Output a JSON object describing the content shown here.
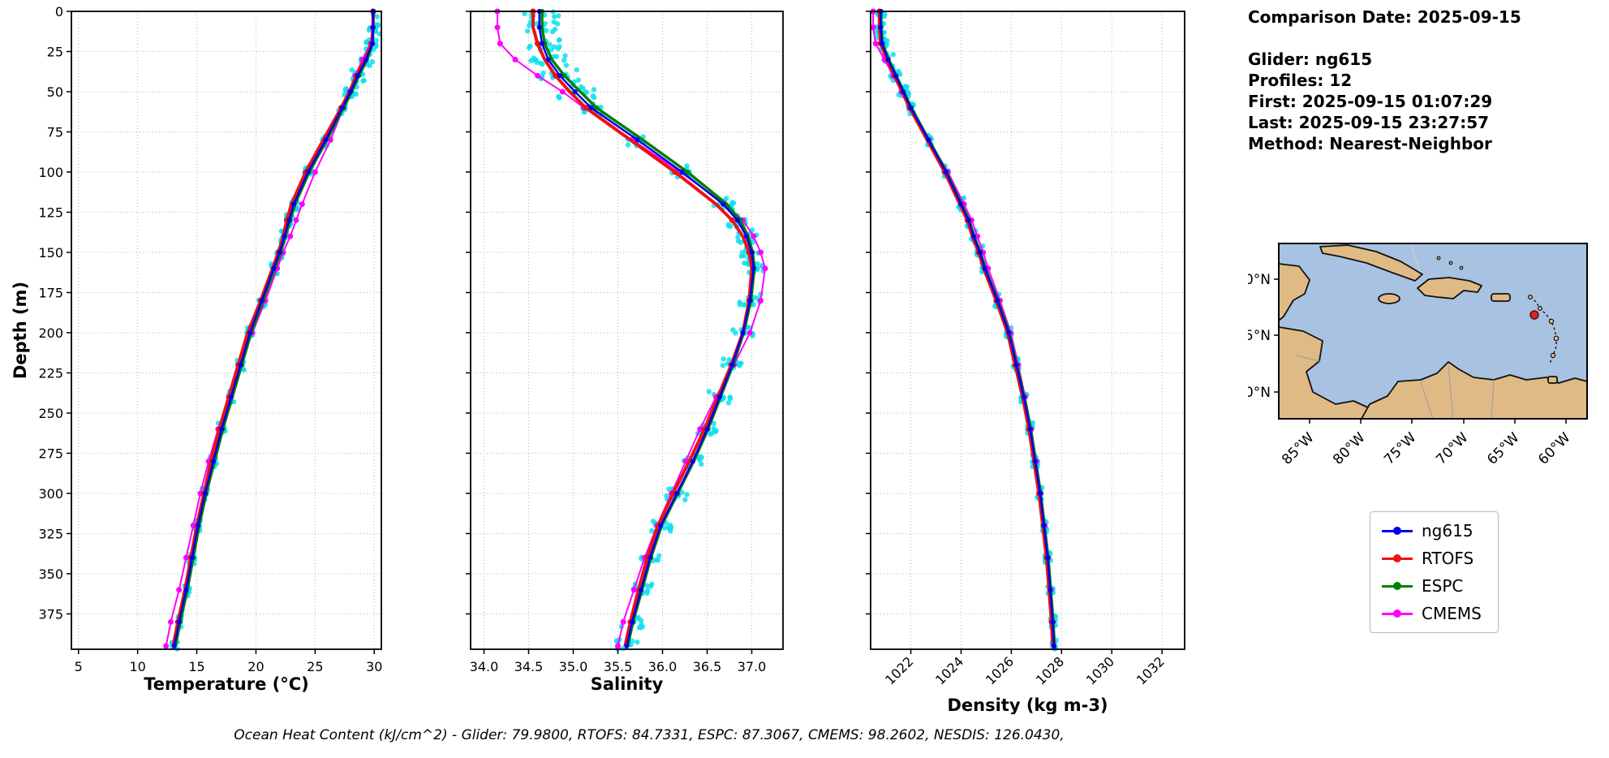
{
  "info": {
    "comparison_date": "Comparison Date: 2025-09-15",
    "glider": "Glider: ng615",
    "profiles": "Profiles: 12",
    "first": "First: 2025-09-15 01:07:29",
    "last": "Last: 2025-09-15 23:27:57",
    "method": "Method: Nearest-Neighbor"
  },
  "footer": {
    "text": "Ocean Heat Content (kJ/cm^2) - Glider: 79.9800,  RTOFS: 84.7331,  ESPC: 87.3067,  CMEMS: 98.2602,  NESDIS: 126.0430,"
  },
  "legend": {
    "entries": [
      {
        "label": "ng615",
        "color": "#0000ee"
      },
      {
        "label": "RTOFS",
        "color": "#ee1111"
      },
      {
        "label": "ESPC",
        "color": "#008000"
      },
      {
        "label": "CMEMS",
        "color": "#ff00ff"
      }
    ]
  },
  "map": {
    "lat_ticks": [
      "20°N",
      "15°N",
      "10°N"
    ],
    "lon_ticks": [
      "85°W",
      "80°W",
      "75°W",
      "70°W",
      "65°W",
      "60°W"
    ],
    "water_color": "#a8c2e2",
    "land_color": "#e0ba85",
    "marker_color": "#dd2222",
    "marker_note": "glider position"
  },
  "chart_data": [
    {
      "type": "line",
      "xlabel": "Temperature (°C)",
      "ylabel": "Depth (m)",
      "xlim": [
        4.4,
        30.6
      ],
      "xticks": [
        5,
        10,
        15,
        20,
        25,
        30
      ],
      "ylim": [
        0,
        397
      ],
      "yticks": [
        0,
        25,
        50,
        75,
        100,
        125,
        150,
        175,
        200,
        225,
        250,
        275,
        300,
        325,
        350,
        375
      ],
      "depths": [
        0,
        10,
        20,
        30,
        40,
        50,
        60,
        80,
        100,
        120,
        130,
        140,
        150,
        160,
        180,
        200,
        220,
        240,
        260,
        280,
        300,
        320,
        340,
        360,
        380,
        395
      ],
      "scatter": {
        "label": "glider raw profiles",
        "color": "#0ce0ee",
        "jitter": 0.3
      },
      "series": [
        {
          "name": "ng615",
          "color": "#0000ee",
          "values": [
            29.9,
            29.9,
            29.85,
            29.3,
            28.6,
            28.0,
            27.3,
            25.9,
            24.4,
            23.2,
            22.8,
            22.4,
            22.0,
            21.5,
            20.5,
            19.5,
            18.7,
            17.9,
            17.1,
            16.4,
            15.7,
            15.1,
            14.6,
            14.1,
            13.5,
            13.1
          ]
        },
        {
          "name": "RTOFS",
          "color": "#ee1111",
          "values": [
            29.9,
            29.9,
            29.8,
            29.2,
            28.5,
            27.9,
            27.2,
            25.7,
            24.2,
            23.0,
            22.6,
            22.3,
            21.9,
            21.4,
            20.4,
            19.3,
            18.5,
            17.7,
            16.9,
            16.2,
            15.6,
            15.0,
            14.5,
            14.0,
            13.4,
            13.0
          ]
        },
        {
          "name": "ESPC",
          "color": "#008000",
          "values": [
            29.95,
            29.9,
            29.85,
            29.4,
            28.7,
            28.1,
            27.4,
            26.0,
            24.5,
            23.3,
            22.9,
            22.5,
            22.1,
            21.6,
            20.6,
            19.6,
            18.8,
            18.0,
            17.2,
            16.5,
            15.8,
            15.2,
            14.7,
            14.2,
            13.6,
            13.2
          ]
        },
        {
          "name": "CMEMS",
          "color": "#ff00ff",
          "values": [
            29.9,
            29.85,
            29.7,
            29.0,
            28.4,
            27.9,
            27.4,
            26.3,
            25.0,
            23.9,
            23.4,
            22.9,
            22.3,
            21.8,
            20.8,
            19.7,
            18.6,
            17.7,
            16.8,
            16.0,
            15.3,
            14.7,
            14.1,
            13.5,
            12.8,
            12.4
          ]
        }
      ]
    },
    {
      "type": "line",
      "xlabel": "Salinity",
      "xlim": [
        33.85,
        37.35
      ],
      "xticks": [
        34.0,
        34.5,
        35.0,
        35.5,
        36.0,
        36.5,
        37.0
      ],
      "xtick_labels": [
        "34.0",
        "34.5",
        "35.0",
        "35.5",
        "36.0",
        "36.5",
        "37.0"
      ],
      "ylim": [
        0,
        397
      ],
      "yticks": [
        0,
        25,
        50,
        75,
        100,
        125,
        150,
        175,
        200,
        225,
        250,
        275,
        300,
        325,
        350,
        375
      ],
      "depths": [
        0,
        10,
        20,
        30,
        40,
        50,
        60,
        80,
        100,
        120,
        130,
        140,
        150,
        160,
        180,
        200,
        220,
        240,
        260,
        280,
        300,
        320,
        340,
        360,
        380,
        395
      ],
      "scatter": {
        "label": "glider raw profiles",
        "color": "#0ce0ee",
        "jitter": 0.12
      },
      "series": [
        {
          "name": "ng615",
          "color": "#0000ee",
          "values": [
            34.62,
            34.62,
            34.65,
            34.72,
            34.85,
            35.02,
            35.2,
            35.72,
            36.22,
            36.68,
            36.84,
            36.94,
            37.0,
            37.02,
            36.98,
            36.9,
            36.78,
            36.64,
            36.5,
            36.34,
            36.16,
            35.98,
            35.86,
            35.76,
            35.66,
            35.6
          ]
        },
        {
          "name": "RTOFS",
          "color": "#ee1111",
          "values": [
            34.55,
            34.55,
            34.6,
            34.68,
            34.8,
            34.96,
            35.14,
            35.64,
            36.14,
            36.6,
            36.78,
            36.9,
            36.97,
            37.0,
            36.97,
            36.9,
            36.77,
            36.62,
            36.47,
            36.3,
            36.12,
            35.95,
            35.83,
            35.73,
            35.64,
            35.58
          ]
        },
        {
          "name": "ESPC",
          "color": "#008000",
          "values": [
            34.65,
            34.65,
            34.68,
            34.76,
            34.9,
            35.08,
            35.26,
            35.78,
            36.28,
            36.72,
            36.87,
            36.96,
            37.01,
            37.03,
            36.99,
            36.91,
            36.79,
            36.65,
            36.51,
            36.35,
            36.17,
            35.99,
            35.87,
            35.77,
            35.67,
            35.61
          ]
        },
        {
          "name": "CMEMS",
          "color": "#ff00ff",
          "values": [
            34.15,
            34.15,
            34.18,
            34.35,
            34.6,
            34.88,
            35.12,
            35.66,
            36.2,
            36.7,
            36.9,
            37.02,
            37.1,
            37.15,
            37.1,
            36.98,
            36.8,
            36.6,
            36.42,
            36.26,
            36.1,
            35.94,
            35.8,
            35.68,
            35.56,
            35.5
          ]
        }
      ]
    },
    {
      "type": "line",
      "xlabel": "Density (kg m-3)",
      "xlim": [
        1020.4,
        1032.9
      ],
      "xticks": [
        1022,
        1024,
        1026,
        1028,
        1030,
        1032
      ],
      "ylim": [
        0,
        397
      ],
      "yticks": [
        0,
        25,
        50,
        75,
        100,
        125,
        150,
        175,
        200,
        225,
        250,
        275,
        300,
        325,
        350,
        375
      ],
      "depths": [
        0,
        10,
        20,
        30,
        40,
        50,
        60,
        80,
        100,
        120,
        130,
        140,
        150,
        160,
        180,
        200,
        220,
        240,
        260,
        280,
        300,
        320,
        340,
        360,
        380,
        395
      ],
      "scatter": {
        "label": "glider raw profiles",
        "color": "#0ce0ee",
        "jitter": 0.12
      },
      "series": [
        {
          "name": "ng615",
          "color": "#0000ee",
          "values": [
            1020.8,
            1020.8,
            1020.85,
            1021.1,
            1021.4,
            1021.7,
            1022.0,
            1022.7,
            1023.4,
            1024.0,
            1024.3,
            1024.5,
            1024.75,
            1024.95,
            1025.45,
            1025.9,
            1026.2,
            1026.5,
            1026.75,
            1026.95,
            1027.15,
            1027.3,
            1027.45,
            1027.55,
            1027.65,
            1027.7
          ]
        },
        {
          "name": "RTOFS",
          "color": "#ee1111",
          "values": [
            1020.75,
            1020.75,
            1020.8,
            1021.05,
            1021.35,
            1021.65,
            1021.95,
            1022.65,
            1023.35,
            1023.95,
            1024.25,
            1024.45,
            1024.7,
            1024.9,
            1025.4,
            1025.85,
            1026.15,
            1026.45,
            1026.7,
            1026.9,
            1027.1,
            1027.25,
            1027.4,
            1027.5,
            1027.6,
            1027.65
          ]
        },
        {
          "name": "ESPC",
          "color": "#008000",
          "values": [
            1020.82,
            1020.82,
            1020.87,
            1021.12,
            1021.42,
            1021.72,
            1022.02,
            1022.72,
            1023.42,
            1024.02,
            1024.32,
            1024.52,
            1024.77,
            1024.97,
            1025.47,
            1025.92,
            1026.22,
            1026.52,
            1026.77,
            1026.97,
            1027.17,
            1027.32,
            1027.47,
            1027.57,
            1027.67,
            1027.72
          ]
        },
        {
          "name": "CMEMS",
          "color": "#ff00ff",
          "values": [
            1020.5,
            1020.5,
            1020.6,
            1020.95,
            1021.3,
            1021.62,
            1021.95,
            1022.72,
            1023.48,
            1024.12,
            1024.42,
            1024.65,
            1024.88,
            1025.08,
            1025.55,
            1025.98,
            1026.28,
            1026.55,
            1026.8,
            1027.0,
            1027.18,
            1027.33,
            1027.47,
            1027.57,
            1027.66,
            1027.7
          ]
        }
      ]
    }
  ]
}
